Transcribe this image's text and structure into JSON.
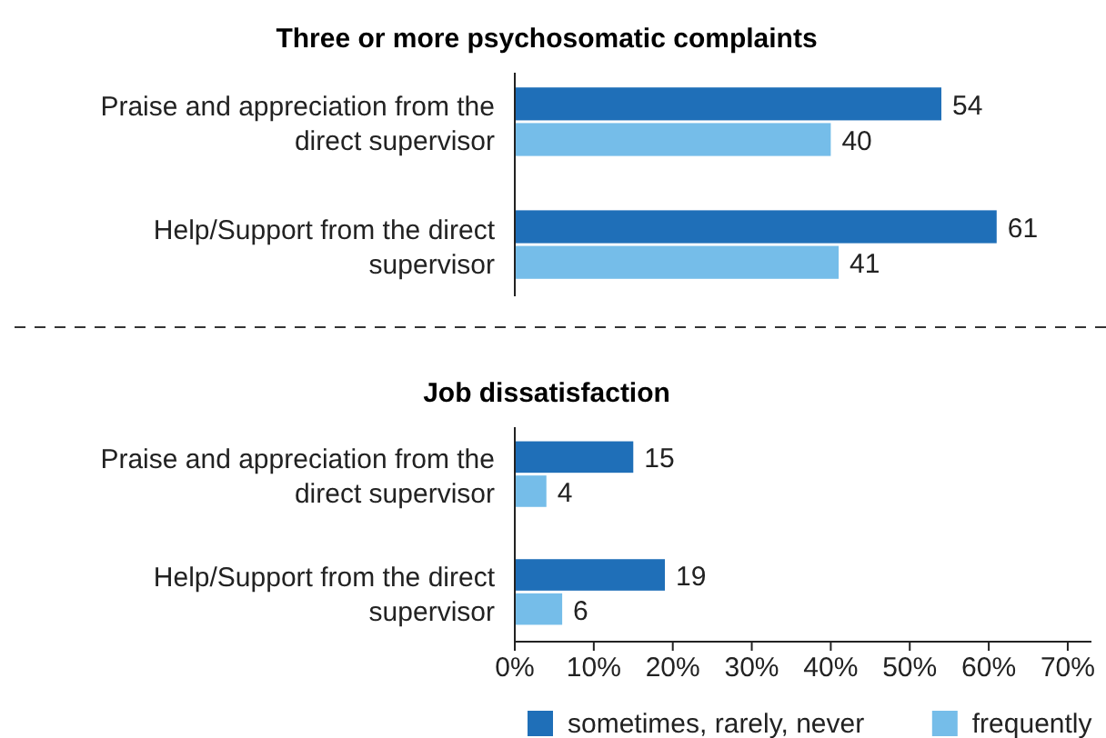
{
  "chart_data": [
    {
      "type": "bar",
      "orientation": "horizontal",
      "title": "Three or more psychosomatic complaints",
      "categories": [
        "Praise and appreciation from the direct supervisor",
        "Help/Support from the direct supervisor"
      ],
      "series": [
        {
          "color": "#1f6fb8",
          "values": [
            54,
            61
          ]
        },
        {
          "color": "#75bde9",
          "values": [
            40,
            41
          ]
        }
      ],
      "tick_labels": "y",
      "data_labels": true
    },
    {
      "type": "bar",
      "orientation": "horizontal",
      "title": "Job dissatisfaction",
      "categories": [
        "Praise and appreciation from the direct supervisor",
        "Help/Support from the direct supervisor"
      ],
      "series": [
        {
          "name": "sometimes, rarely, never",
          "color": "#1f6fb8",
          "values": [
            15,
            19
          ]
        },
        {
          "name": "frequently",
          "color": "#75bde9",
          "values": [
            4,
            6
          ]
        }
      ],
      "xlim": [
        0,
        73
      ],
      "xticks": [
        {
          "value": 0,
          "label": "0%"
        },
        {
          "value": 10,
          "label": "10%"
        },
        {
          "value": 20,
          "label": "20%"
        },
        {
          "value": 30,
          "label": "30%"
        },
        {
          "value": 40,
          "label": "40%"
        },
        {
          "value": 50,
          "label": "50%"
        },
        {
          "value": 60,
          "label": "60%"
        },
        {
          "value": 70,
          "label": "70%"
        }
      ],
      "data_labels": true,
      "legend": "bottom"
    }
  ]
}
